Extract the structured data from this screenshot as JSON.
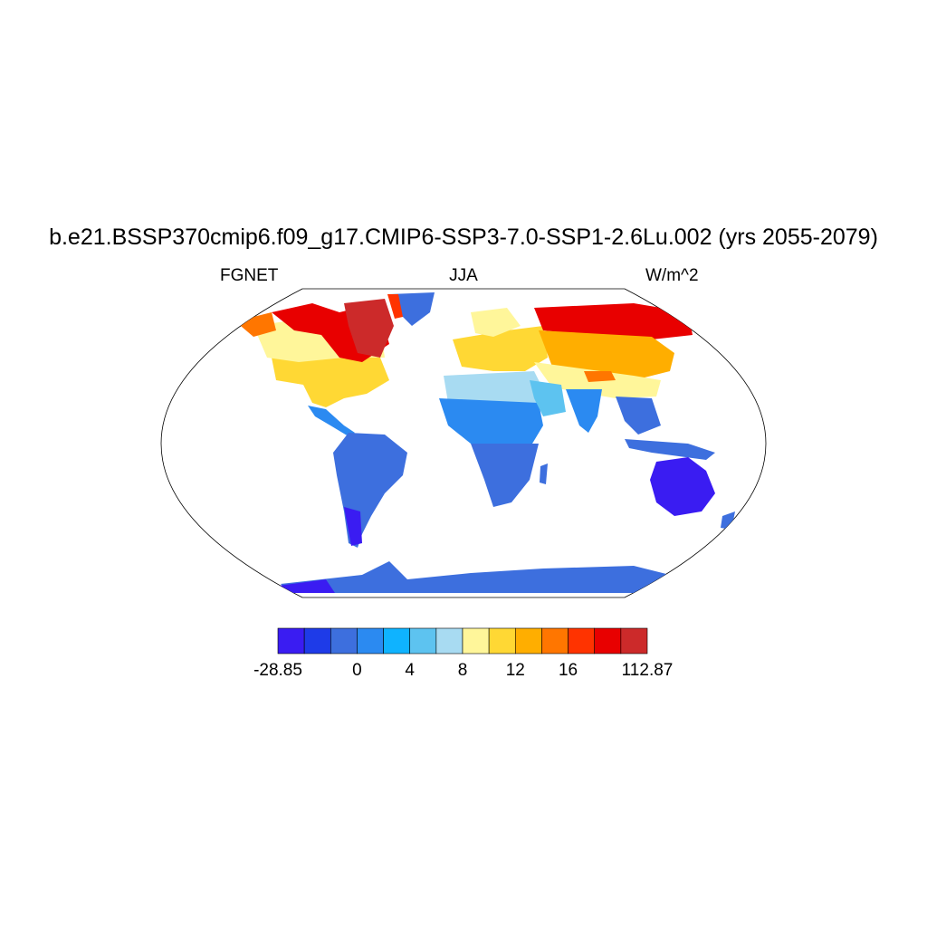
{
  "title": "b.e21.BSSP370cmip6.f09_g17.CMIP6-SSP3-7.0-SSP1-2.6Lu.002 (yrs 2055-2079)",
  "left_string": "FGNET",
  "center_string": "JJA",
  "right_string": "W/m^2",
  "colorbar": {
    "colors": [
      "#3a1cf2",
      "#1e3be8",
      "#3d6fde",
      "#2b8af1",
      "#0fb3ff",
      "#5dc3f0",
      "#a8dbf2",
      "#fff69a",
      "#ffd834",
      "#ffae00",
      "#ff7600",
      "#ff3300",
      "#e80000",
      "#cc2a2a"
    ],
    "labels": [
      {
        "text": "-28.85",
        "boundary": 0
      },
      {
        "text": "0",
        "boundary": 3
      },
      {
        "text": "4",
        "boundary": 5
      },
      {
        "text": "8",
        "boundary": 7
      },
      {
        "text": "12",
        "boundary": 9
      },
      {
        "text": "16",
        "boundary": 11
      },
      {
        "text": "112.87",
        "boundary": 14
      }
    ]
  }
}
